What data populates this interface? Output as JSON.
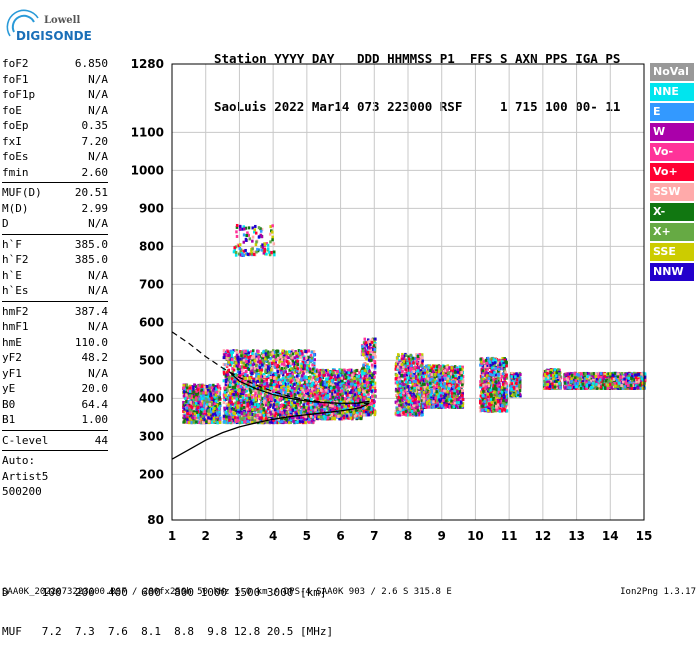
{
  "logo": {
    "line1": "Lowell",
    "line2": "DIGISONDE"
  },
  "header": {
    "labels": "Station YYYY DAY   DDD HHMMSS P1  FFS S AXN PPS IGA PS",
    "values": "SaoLuis 2022 Mar14 073 223000 RSF     1 715 100 00- 11"
  },
  "params": {
    "group1": [
      {
        "name": "foF2",
        "value": "6.850"
      },
      {
        "name": "foF1",
        "value": "N/A"
      },
      {
        "name": "foF1p",
        "value": "N/A"
      },
      {
        "name": "foE",
        "value": "N/A"
      },
      {
        "name": "foEp",
        "value": "0.35"
      },
      {
        "name": "fxI",
        "value": "7.20"
      },
      {
        "name": "foEs",
        "value": "N/A"
      },
      {
        "name": "fmin",
        "value": "2.60"
      }
    ],
    "group2": [
      {
        "name": "MUF(D)",
        "value": "20.51"
      },
      {
        "name": "M(D)",
        "value": "2.99"
      },
      {
        "name": "D",
        "value": "N/A"
      }
    ],
    "group3": [
      {
        "name": "h`F",
        "value": "385.0"
      },
      {
        "name": "h`F2",
        "value": "385.0"
      },
      {
        "name": "h`E",
        "value": "N/A"
      },
      {
        "name": "h`Es",
        "value": "N/A"
      }
    ],
    "group4": [
      {
        "name": "hmF2",
        "value": "387.4"
      },
      {
        "name": "hmF1",
        "value": "N/A"
      },
      {
        "name": "hmE",
        "value": "110.0"
      },
      {
        "name": "yF2",
        "value": "48.2"
      },
      {
        "name": "yF1",
        "value": "N/A"
      },
      {
        "name": "yE",
        "value": "20.0"
      },
      {
        "name": "B0",
        "value": "64.4"
      },
      {
        "name": "B1",
        "value": "1.00"
      }
    ],
    "clevel": {
      "name": "C-level",
      "value": "44"
    },
    "auto": [
      "Auto:",
      "Artist5",
      "500200"
    ]
  },
  "legend": [
    {
      "label": "NoVal",
      "color": "#999999"
    },
    {
      "label": "NNE",
      "color": "#00e5ee"
    },
    {
      "label": "E",
      "color": "#3399ff"
    },
    {
      "label": "W",
      "color": "#aa00aa"
    },
    {
      "label": "Vo-",
      "color": "#ff3399"
    },
    {
      "label": "Vo+",
      "color": "#ff0033"
    },
    {
      "label": "SSW",
      "color": "#ffaaaa"
    },
    {
      "label": "X-",
      "color": "#117711"
    },
    {
      "label": "X+",
      "color": "#66aa44"
    },
    {
      "label": "SSE",
      "color": "#cccc00"
    },
    {
      "label": "NNW",
      "color": "#2200cc"
    }
  ],
  "chart_data": {
    "type": "scatter",
    "xlim": [
      1,
      15
    ],
    "ylim": [
      80,
      1280
    ],
    "xticks": [
      "1",
      "2",
      "3",
      "4",
      "5",
      "6",
      "7",
      "8",
      "9",
      "10",
      "11",
      "12",
      "13",
      "14",
      "15"
    ],
    "yticks": [
      "80",
      "200",
      "300",
      "400",
      "500",
      "600",
      "700",
      "800",
      "900",
      "1000",
      "1100",
      "1280"
    ],
    "grid": true,
    "reflection_columns": [
      {
        "x0": 1.3,
        "x1": 2.4,
        "y0": 340,
        "y1": 440
      },
      {
        "x0": 2.5,
        "x1": 5.2,
        "y0": 340,
        "y1": 530
      },
      {
        "x0": 5.2,
        "x1": 6.6,
        "y0": 350,
        "y1": 480
      },
      {
        "x0": 6.6,
        "x1": 7.0,
        "y0": 360,
        "y1": 560
      },
      {
        "x0": 7.6,
        "x1": 8.4,
        "y0": 360,
        "y1": 520
      },
      {
        "x0": 8.4,
        "x1": 9.6,
        "y0": 380,
        "y1": 490
      },
      {
        "x0": 10.1,
        "x1": 10.9,
        "y0": 370,
        "y1": 510
      },
      {
        "x0": 11.0,
        "x1": 11.3,
        "y0": 410,
        "y1": 470
      },
      {
        "x0": 12.0,
        "x1": 12.5,
        "y0": 430,
        "y1": 480
      },
      {
        "x0": 12.6,
        "x1": 15.0,
        "y0": 430,
        "y1": 470
      }
    ],
    "sparse_cluster": {
      "x0": 2.8,
      "x1": 4.0,
      "y0": 780,
      "y1": 860
    },
    "profile_solid": [
      [
        1.0,
        240
      ],
      [
        1.5,
        265
      ],
      [
        2.0,
        290
      ],
      [
        2.5,
        310
      ],
      [
        3.0,
        325
      ],
      [
        3.5,
        336
      ],
      [
        4.0,
        345
      ],
      [
        4.5,
        352
      ],
      [
        5.0,
        357
      ],
      [
        5.5,
        362
      ],
      [
        6.0,
        367
      ],
      [
        6.3,
        371
      ],
      [
        6.6,
        376
      ],
      [
        6.85,
        387
      ]
    ],
    "profile_dashed": [
      [
        1.0,
        575
      ],
      [
        1.5,
        545
      ],
      [
        2.0,
        510
      ],
      [
        2.5,
        480
      ],
      [
        3.0,
        455
      ],
      [
        3.5,
        435
      ],
      [
        4.0,
        418
      ],
      [
        4.5,
        405
      ],
      [
        5.0,
        396
      ],
      [
        5.5,
        390
      ],
      [
        6.0,
        387
      ],
      [
        6.85,
        387
      ]
    ],
    "trace": [
      [
        2.7,
        470
      ],
      [
        3.0,
        445
      ],
      [
        3.5,
        425
      ],
      [
        4.0,
        410
      ],
      [
        4.5,
        400
      ],
      [
        5.0,
        393
      ],
      [
        5.5,
        389
      ],
      [
        6.0,
        387
      ],
      [
        6.5,
        388
      ],
      [
        6.85,
        392
      ]
    ]
  },
  "muf_table": {
    "d_row": "D     100  200  400  600  800 1000 1500 3000 [km]",
    "muf_row": "MUF   7.2  7.3  7.6  8.1  8.8  9.8 12.8 20.5 [MHz]"
  },
  "footer": {
    "text": "SAA0K_2022073223000.RSF / 280fx256h 50 kHz 5.0 km / DPS-4 SAA0K 903 / 2.6 S 315.8 E",
    "version": "Ion2Png 1.3.17"
  }
}
